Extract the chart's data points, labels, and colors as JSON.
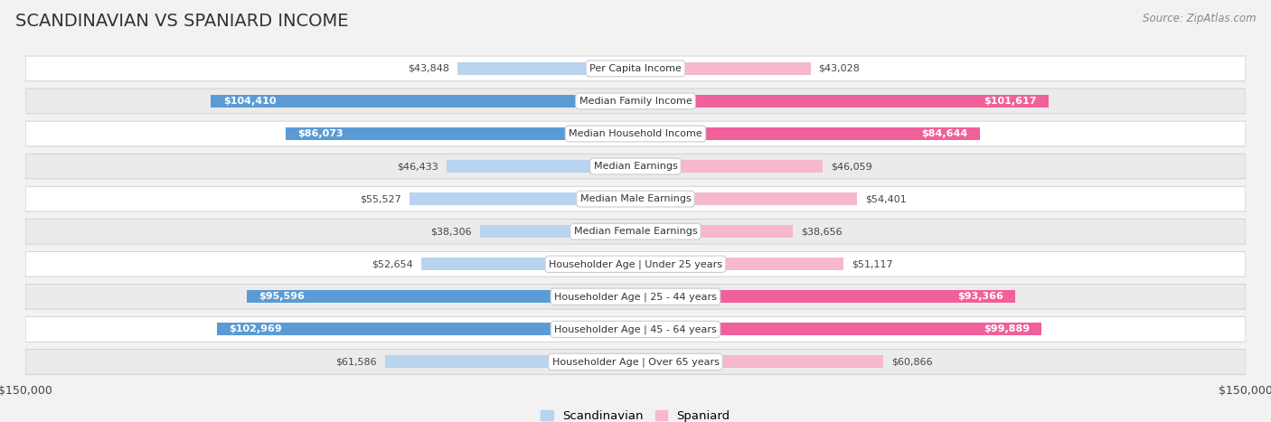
{
  "title": "SCANDINAVIAN VS SPANIARD INCOME",
  "source": "Source: ZipAtlas.com",
  "categories": [
    "Per Capita Income",
    "Median Family Income",
    "Median Household Income",
    "Median Earnings",
    "Median Male Earnings",
    "Median Female Earnings",
    "Householder Age | Under 25 years",
    "Householder Age | 25 - 44 years",
    "Householder Age | 45 - 64 years",
    "Householder Age | Over 65 years"
  ],
  "scandinavian_values": [
    43848,
    104410,
    86073,
    46433,
    55527,
    38306,
    52654,
    95596,
    102969,
    61586
  ],
  "spaniard_values": [
    43028,
    101617,
    84644,
    46059,
    54401,
    38656,
    51117,
    93366,
    99889,
    60866
  ],
  "scandinavian_color_low": "#b8d4ee",
  "scandinavian_color_high": "#5b9bd5",
  "spaniard_color_low": "#f5b8cf",
  "spaniard_color_high": "#f0609a",
  "max_value": 150000,
  "legend_scandinavian": "Scandinavian",
  "legend_spaniard": "Spaniard",
  "background_color": "#f2f2f2",
  "row_bg_even": "#ffffff",
  "row_bg_odd": "#ebebeb",
  "label_fontsize": 8.0,
  "title_fontsize": 14,
  "source_fontsize": 8.5,
  "threshold": 70000
}
